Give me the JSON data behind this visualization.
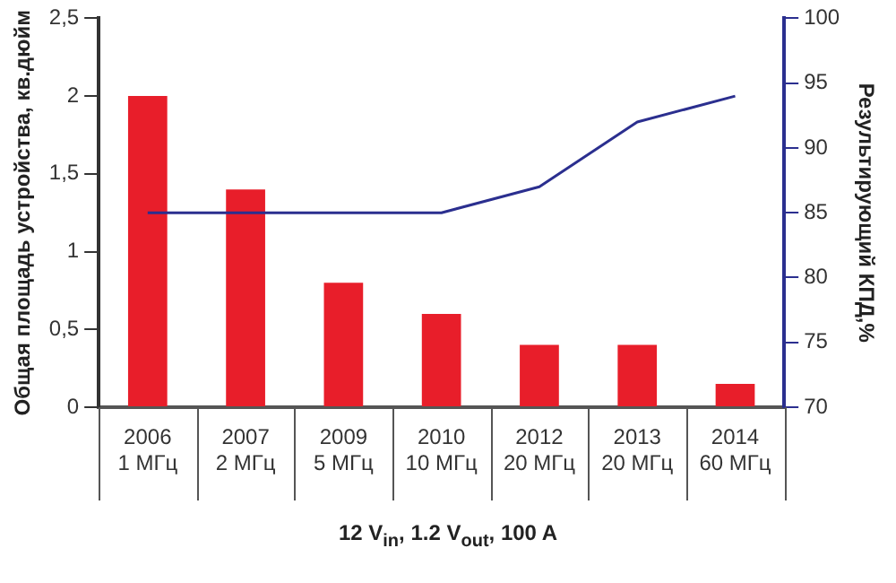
{
  "chart_data": {
    "type": "bar",
    "xlabel": "12 V$_{in}$, 1.2 V$_{out}$, 100 A",
    "ylabel": "Общая площадь устройства, кв.дюйм",
    "y2label": "Результирующий КПД,%",
    "categories": [
      "2006\n1 МГц",
      "2007\n2 МГц",
      "2009\n5 МГц",
      "2010\n10 МГц",
      "2012\n20 МГц",
      "2013\n20 МГц",
      "2014\n60 МГц"
    ],
    "series": [
      {
        "color": "#e81e2a",
        "values": [
          2,
          1.4,
          0.8,
          0.6,
          0.4,
          0.4,
          0.15
        ]
      },
      {
        "type": "line",
        "axis": "y2",
        "color": "#2b2f8f",
        "values": [
          85,
          85,
          85,
          85,
          87,
          92,
          94
        ]
      }
    ],
    "ylim": [
      0,
      2.5
    ],
    "yticks": [
      0,
      {
        "value": 0.5,
        "label": "0,5"
      },
      1,
      {
        "value": 1.5,
        "label": "1,5"
      },
      2,
      {
        "value": 2.5,
        "label": "2,5"
      }
    ],
    "y2lim": [
      70,
      100
    ],
    "y2ticks": [
      70,
      75,
      80,
      85,
      90,
      95,
      100
    ],
    "grid": false,
    "legend": false,
    "marker": "none"
  }
}
